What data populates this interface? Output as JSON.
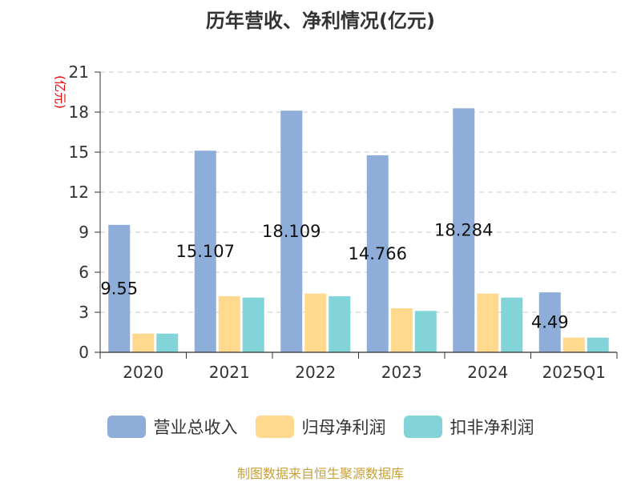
{
  "title": "历年营收、净利情况(亿元)",
  "footer": "制图数据来自恒生聚源数据库",
  "colors": {
    "revenue": "#8eadd9",
    "net_profit_parent": "#ffd98e",
    "net_profit_deducted": "#83d4d8",
    "ylabel": "#e60000",
    "grid": "#c8c8c8",
    "axis": "#333333"
  },
  "chart_data": {
    "type": "bar",
    "title": "历年营收、净利情况(亿元)",
    "ylabel": "(亿元)",
    "xlabel": "",
    "categories": [
      "2020",
      "2021",
      "2022",
      "2023",
      "2024",
      "2025Q1"
    ],
    "ylim": [
      0,
      21
    ],
    "yticks": [
      0,
      3,
      6,
      9,
      12,
      15,
      18,
      21
    ],
    "grid": true,
    "legend_position": "bottom",
    "series": [
      {
        "name": "营业总收入",
        "values": [
          9.55,
          15.107,
          18.109,
          14.766,
          18.284,
          4.49
        ],
        "labels": [
          "9.55",
          "15.107",
          "18.109",
          "14.766",
          "18.284",
          "4.49"
        ]
      },
      {
        "name": "归母净利润",
        "values": [
          1.4,
          4.2,
          4.4,
          3.3,
          4.4,
          1.1
        ]
      },
      {
        "name": "扣非净利润",
        "values": [
          1.4,
          4.1,
          4.2,
          3.1,
          4.1,
          1.1
        ]
      }
    ]
  }
}
